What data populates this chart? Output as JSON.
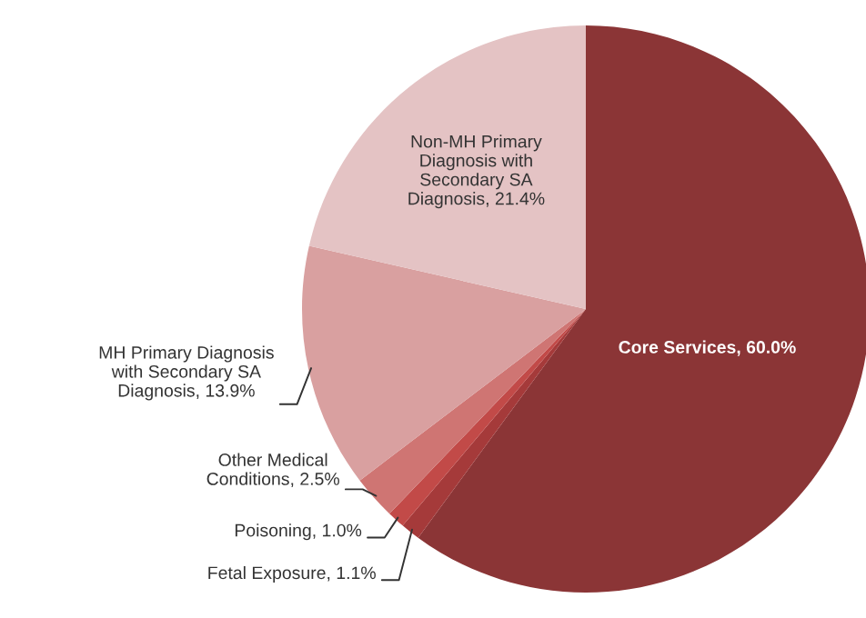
{
  "chart_data": {
    "type": "pie",
    "categories": [
      "Core Services, 60.0%",
      "Fetal Exposure, 1.1%",
      "Poisoning, 1.0%",
      "Other Medical\nConditions, 2.5%",
      "MH Primary Diagnosis\nwith Secondary SA\nDiagnosis, 13.9%",
      "Non-MH Primary\nDiagnosis with\nSecondary SA\nDiagnosis, 21.4%"
    ],
    "values": [
      60.0,
      1.1,
      1.0,
      2.5,
      13.9,
      21.4
    ],
    "colors": [
      "#8b3536",
      "#a53a3a",
      "#c24a48",
      "#cf7573",
      "#d9a0a0",
      "#e4c3c4"
    ],
    "legend": false
  }
}
